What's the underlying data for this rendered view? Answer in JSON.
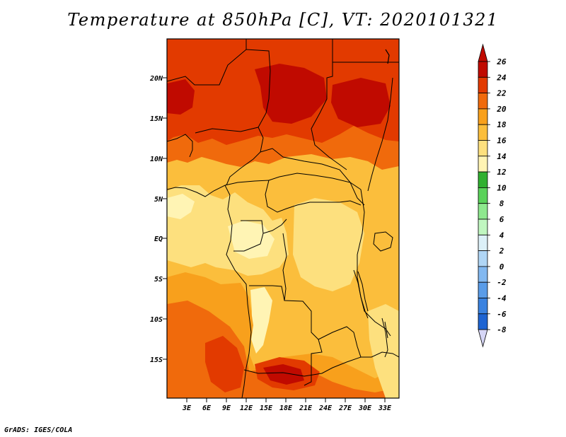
{
  "title": "Temperature at 850hPa [C], VT: 2020101321",
  "credit": "GrADS: IGES/COLA",
  "map": {
    "lat_labels": [
      "20N",
      "15N",
      "10N",
      "5N",
      "EQ",
      "5S",
      "10S",
      "15S"
    ],
    "lon_labels": [
      "3E",
      "6E",
      "9E",
      "12E",
      "15E",
      "18E",
      "21E",
      "24E",
      "27E",
      "30E",
      "33E"
    ]
  },
  "colorbar": {
    "levels": [
      {
        "label": "26",
        "color": "#c00a00"
      },
      {
        "label": "24",
        "color": "#e23a00"
      },
      {
        "label": "22",
        "color": "#f06a0c"
      },
      {
        "label": "20",
        "color": "#f8a01c"
      },
      {
        "label": "18",
        "color": "#fbbe3c"
      },
      {
        "label": "16",
        "color": "#fde07e"
      },
      {
        "label": "14",
        "color": "#fff4b4"
      },
      {
        "label": "12",
        "color": "#30b030"
      },
      {
        "label": "10",
        "color": "#5ad25a"
      },
      {
        "label": "8",
        "color": "#8ee88e"
      },
      {
        "label": "6",
        "color": "#c0f6c0"
      },
      {
        "label": "4",
        "color": "#dcf0f8"
      },
      {
        "label": "2",
        "color": "#b0d6f6"
      },
      {
        "label": "0",
        "color": "#82b8f0"
      },
      {
        "label": "-2",
        "color": "#5a9ce8"
      },
      {
        "label": "-4",
        "color": "#3a82e0"
      },
      {
        "label": "-6",
        "color": "#1e64d2"
      },
      {
        "label": "-8",
        "color": "#0a40b0"
      }
    ],
    "bottom_color": "#000a78",
    "overflow_bottom_color": "#d6d6f6"
  }
}
